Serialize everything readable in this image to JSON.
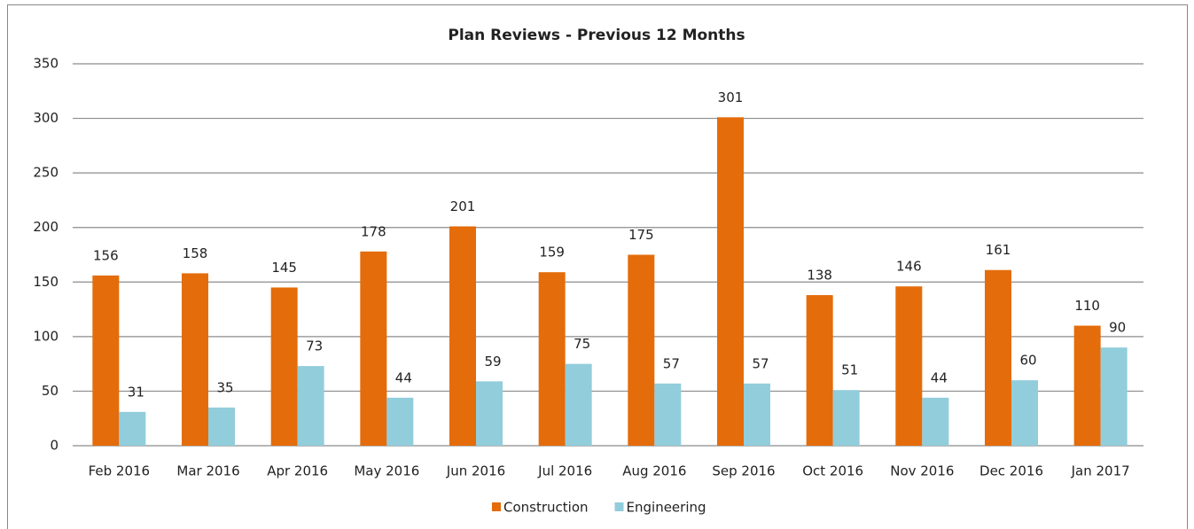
{
  "chart_data": {
    "type": "bar",
    "title": "Plan Reviews - Previous 12 Months",
    "categories": [
      "Feb 2016",
      "Mar 2016",
      "Apr 2016",
      "May 2016",
      "Jun 2016",
      "Jul 2016",
      "Aug 2016",
      "Sep 2016",
      "Oct 2016",
      "Nov 2016",
      "Dec 2016",
      "Jan 2017"
    ],
    "series": [
      {
        "name": "Construction",
        "color": "#e46c0a",
        "values": [
          156,
          158,
          145,
          178,
          201,
          159,
          175,
          301,
          138,
          146,
          161,
          110
        ]
      },
      {
        "name": "Engineering",
        "color": "#92cddc",
        "values": [
          31,
          35,
          73,
          44,
          59,
          75,
          57,
          57,
          51,
          44,
          60,
          90
        ]
      }
    ],
    "ylim": [
      0,
      350
    ],
    "yticks": [
      0,
      50,
      100,
      150,
      200,
      250,
      300,
      350
    ],
    "grid": true,
    "legend": "bottom"
  }
}
